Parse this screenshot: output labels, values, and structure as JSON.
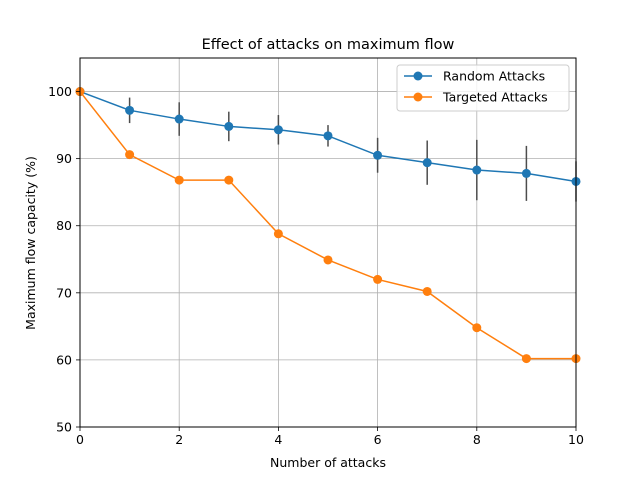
{
  "chart_data": {
    "type": "line",
    "title": "Effect of attacks on maximum flow",
    "xlabel": "Number of attacks",
    "ylabel": "Maximum flow capacity (%)",
    "xlim": [
      0,
      10
    ],
    "ylim": [
      50,
      105
    ],
    "xticks": [
      0,
      2,
      4,
      6,
      8,
      10
    ],
    "yticks": [
      50,
      60,
      70,
      80,
      90,
      100
    ],
    "grid": true,
    "legend_position": "top-right",
    "x": [
      0,
      1,
      2,
      3,
      4,
      5,
      6,
      7,
      8,
      9,
      10
    ],
    "series": [
      {
        "name": "Random Attacks",
        "color": "#1f77b4",
        "values": [
          100,
          97.2,
          95.9,
          94.8,
          94.3,
          93.4,
          90.5,
          89.4,
          88.3,
          87.8,
          86.6
        ],
        "error": [
          0,
          1.9,
          2.5,
          2.2,
          2.2,
          1.6,
          2.6,
          3.3,
          4.5,
          4.1,
          3.0
        ]
      },
      {
        "name": "Targeted Attacks",
        "color": "#ff7f0e",
        "values": [
          100,
          90.6,
          86.8,
          86.8,
          78.8,
          74.9,
          72.0,
          70.2,
          64.8,
          60.2,
          60.2
        ]
      }
    ],
    "errorbar_color": "#4d4d4d",
    "grid_color": "#b0b0b0"
  }
}
